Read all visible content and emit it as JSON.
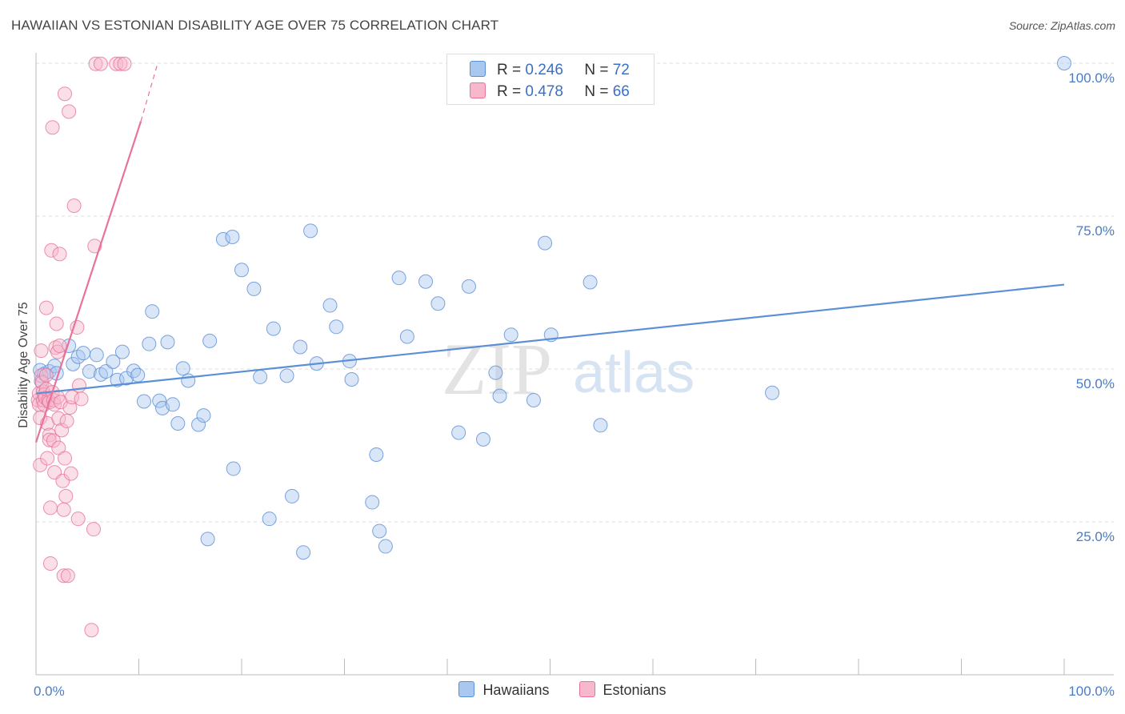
{
  "header": {
    "title": "HAWAIIAN VS ESTONIAN DISABILITY AGE OVER 75 CORRELATION CHART",
    "source": "Source: ZipAtlas.com"
  },
  "legend_stats": [
    {
      "r_label": "R =",
      "r_value": "0.246",
      "n_label": "N =",
      "n_value": "72",
      "color": "#a9c8f0"
    },
    {
      "r_label": "R =",
      "r_value": "0.478",
      "n_label": "N =",
      "n_value": "66",
      "color": "#f7b8cb"
    }
  ],
  "bottom_legend": [
    "Hawaiians",
    "Estonians"
  ],
  "watermark": {
    "zip": "ZIP",
    "atlas": "atlas"
  },
  "chart_data": {
    "type": "scatter",
    "title": "HAWAIIAN VS ESTONIAN DISABILITY AGE OVER 75 CORRELATION CHART",
    "ylabel": "Disability Age Over 75",
    "xlabel": "",
    "xlim": [
      0,
      100
    ],
    "ylim": [
      0,
      100
    ],
    "x_tick_labels": [
      "0.0%",
      "100.0%"
    ],
    "y_tick_labels": [
      "25.0%",
      "50.0%",
      "75.0%",
      "100.0%"
    ],
    "y_ticks": [
      25,
      50,
      75,
      100
    ],
    "grid": true,
    "legend_placement": "top-center",
    "series": [
      {
        "name": "Hawaiians",
        "color": "#5b8fd6",
        "fill": "#a9c8f0",
        "trend": {
          "x": [
            0,
            100
          ],
          "y": [
            46.0,
            63.8
          ]
        },
        "points": [
          [
            0.4,
            49.8
          ],
          [
            0.5,
            48.0
          ],
          [
            0.8,
            49.2
          ],
          [
            1.3,
            49.6
          ],
          [
            1.8,
            50.5
          ],
          [
            2.0,
            49.3
          ],
          [
            3.2,
            53.8
          ],
          [
            3.6,
            50.8
          ],
          [
            4.1,
            52.0
          ],
          [
            4.6,
            52.6
          ],
          [
            5.2,
            49.6
          ],
          [
            5.9,
            52.3
          ],
          [
            6.3,
            49.1
          ],
          [
            6.8,
            49.6
          ],
          [
            7.5,
            51.2
          ],
          [
            7.9,
            48.2
          ],
          [
            8.4,
            52.8
          ],
          [
            8.8,
            48.5
          ],
          [
            9.5,
            49.7
          ],
          [
            9.9,
            49.0
          ],
          [
            10.5,
            44.7
          ],
          [
            11.0,
            54.1
          ],
          [
            11.3,
            59.4
          ],
          [
            12.0,
            44.8
          ],
          [
            12.3,
            43.6
          ],
          [
            12.8,
            54.4
          ],
          [
            13.3,
            44.2
          ],
          [
            13.8,
            41.1
          ],
          [
            14.3,
            50.1
          ],
          [
            14.8,
            48.1
          ],
          [
            15.8,
            40.9
          ],
          [
            16.3,
            42.4
          ],
          [
            16.7,
            22.2
          ],
          [
            16.9,
            54.6
          ],
          [
            18.2,
            71.2
          ],
          [
            19.1,
            71.6
          ],
          [
            20.0,
            66.2
          ],
          [
            21.2,
            63.1
          ],
          [
            19.2,
            33.7
          ],
          [
            21.8,
            48.7
          ],
          [
            22.7,
            25.5
          ],
          [
            23.1,
            56.6
          ],
          [
            24.4,
            48.9
          ],
          [
            24.9,
            29.2
          ],
          [
            25.7,
            53.6
          ],
          [
            26.0,
            20.0
          ],
          [
            26.7,
            72.6
          ],
          [
            27.3,
            50.9
          ],
          [
            28.6,
            60.4
          ],
          [
            29.2,
            56.9
          ],
          [
            30.5,
            51.3
          ],
          [
            30.7,
            48.3
          ],
          [
            32.7,
            28.2
          ],
          [
            33.1,
            36.0
          ],
          [
            33.4,
            23.5
          ],
          [
            34.0,
            21.0
          ],
          [
            35.3,
            64.9
          ],
          [
            36.1,
            55.3
          ],
          [
            37.9,
            64.3
          ],
          [
            39.1,
            60.7
          ],
          [
            41.1,
            39.6
          ],
          [
            42.1,
            63.5
          ],
          [
            43.5,
            38.5
          ],
          [
            44.7,
            49.4
          ],
          [
            45.1,
            45.6
          ],
          [
            46.2,
            55.6
          ],
          [
            48.4,
            44.9
          ],
          [
            49.5,
            70.6
          ],
          [
            50.1,
            55.6
          ],
          [
            53.9,
            64.2
          ],
          [
            54.9,
            40.8
          ],
          [
            71.6,
            46.1
          ],
          [
            100.0,
            100.0
          ]
        ]
      },
      {
        "name": "Estonians",
        "color": "#e8739a",
        "fill": "#f7b8cb",
        "trend": {
          "x": [
            0,
            10.2
          ],
          "y": [
            38.0,
            90.5
          ]
        },
        "trend_dashed": {
          "x": [
            10.2,
            11.8
          ],
          "y": [
            90.5,
            99.8
          ]
        },
        "points": [
          [
            0.2,
            44.9
          ],
          [
            0.3,
            46.0
          ],
          [
            0.3,
            44.2
          ],
          [
            0.4,
            42.0
          ],
          [
            0.4,
            34.3
          ],
          [
            0.5,
            53.0
          ],
          [
            0.5,
            48.9
          ],
          [
            0.6,
            47.8
          ],
          [
            0.7,
            46.3
          ],
          [
            0.7,
            44.9
          ],
          [
            0.8,
            45.8
          ],
          [
            0.8,
            44.2
          ],
          [
            0.9,
            45.3
          ],
          [
            1.0,
            60.0
          ],
          [
            1.0,
            49.0
          ],
          [
            1.0,
            46.7
          ],
          [
            1.1,
            41.1
          ],
          [
            1.1,
            35.4
          ],
          [
            1.2,
            44.9
          ],
          [
            1.3,
            44.6
          ],
          [
            1.3,
            39.2
          ],
          [
            1.3,
            38.4
          ],
          [
            1.4,
            27.3
          ],
          [
            1.4,
            18.2
          ],
          [
            1.5,
            69.4
          ],
          [
            1.6,
            89.5
          ],
          [
            1.6,
            46.2
          ],
          [
            1.7,
            44.9
          ],
          [
            1.7,
            38.3
          ],
          [
            1.8,
            44.2
          ],
          [
            1.8,
            33.1
          ],
          [
            1.9,
            53.5
          ],
          [
            2.0,
            57.4
          ],
          [
            2.1,
            52.8
          ],
          [
            2.1,
            45.4
          ],
          [
            2.2,
            41.9
          ],
          [
            2.2,
            37.1
          ],
          [
            2.3,
            68.8
          ],
          [
            2.3,
            53.8
          ],
          [
            2.4,
            44.6
          ],
          [
            2.5,
            40.0
          ],
          [
            2.6,
            31.7
          ],
          [
            2.7,
            27.0
          ],
          [
            2.7,
            16.2
          ],
          [
            2.8,
            95.0
          ],
          [
            2.8,
            35.4
          ],
          [
            2.9,
            29.2
          ],
          [
            3.0,
            41.5
          ],
          [
            3.1,
            16.2
          ],
          [
            3.2,
            92.1
          ],
          [
            3.3,
            43.7
          ],
          [
            3.4,
            32.9
          ],
          [
            3.5,
            45.4
          ],
          [
            3.7,
            76.7
          ],
          [
            4.0,
            56.8
          ],
          [
            4.1,
            25.5
          ],
          [
            4.2,
            47.3
          ],
          [
            4.4,
            45.1
          ],
          [
            5.4,
            7.3
          ],
          [
            5.6,
            23.8
          ],
          [
            5.7,
            70.1
          ],
          [
            5.8,
            99.9
          ],
          [
            6.3,
            99.9
          ],
          [
            7.8,
            99.9
          ],
          [
            8.2,
            99.9
          ],
          [
            8.6,
            99.9
          ]
        ]
      }
    ]
  }
}
